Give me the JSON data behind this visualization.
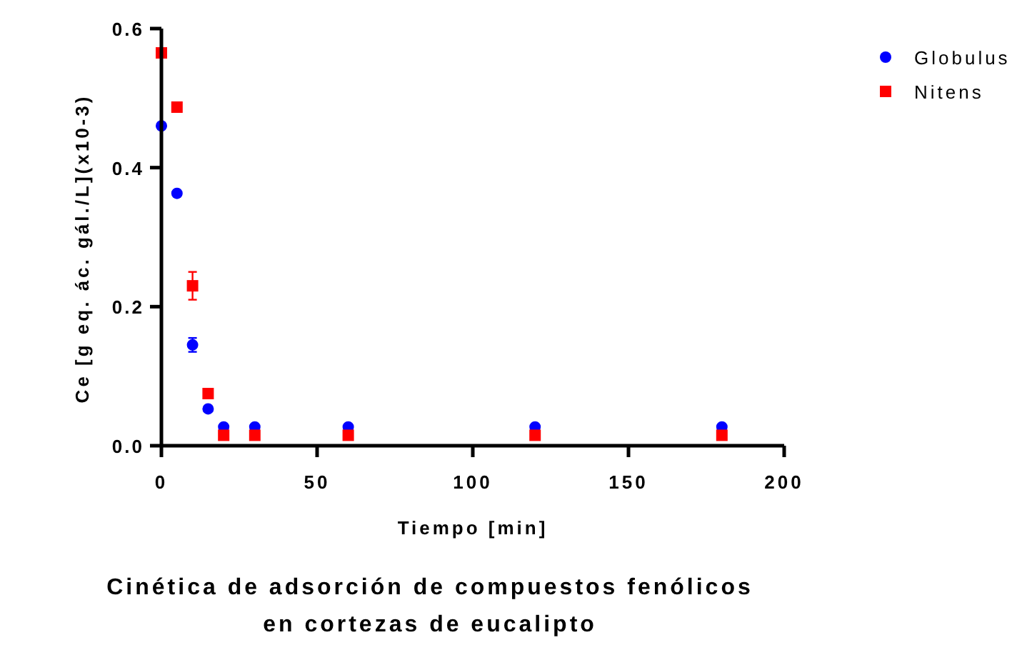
{
  "chart_data": {
    "type": "scatter",
    "title": "Cinética de adsorción de compuestos fenólicos en cortezas de eucalipto",
    "xlabel": "Tiempo [min]",
    "ylabel": "Ce [g eq. ác. gál./L](x10-3)",
    "x": [
      0,
      5,
      10,
      15,
      20,
      30,
      60,
      120,
      180
    ],
    "series": [
      {
        "name": "Globulus",
        "color": "#0000ff",
        "marker": "circle",
        "values": [
          0.46,
          0.363,
          0.145,
          0.053,
          0.027,
          0.027,
          0.027,
          0.027,
          0.027
        ],
        "errors": [
          null,
          null,
          0.01,
          null,
          null,
          null,
          null,
          null,
          null
        ]
      },
      {
        "name": "Nitens",
        "color": "#ff0000",
        "marker": "square",
        "values": [
          0.565,
          0.487,
          0.23,
          0.075,
          0.015,
          0.015,
          0.015,
          0.015,
          0.015
        ],
        "errors": [
          null,
          0.007,
          0.02,
          0.006,
          null,
          null,
          null,
          null,
          null
        ]
      }
    ],
    "xlim": [
      0,
      200
    ],
    "xticks": [
      0,
      50,
      100,
      150,
      200
    ],
    "ylim": [
      0,
      0.6
    ],
    "yticks": [
      {
        "value": 0,
        "label": "0.0"
      },
      {
        "value": 0.2,
        "label": "0.2"
      },
      {
        "value": 0.4,
        "label": "0.4"
      },
      {
        "value": 0.6,
        "label": "0.6"
      }
    ],
    "legend": "top right",
    "grid": false
  }
}
